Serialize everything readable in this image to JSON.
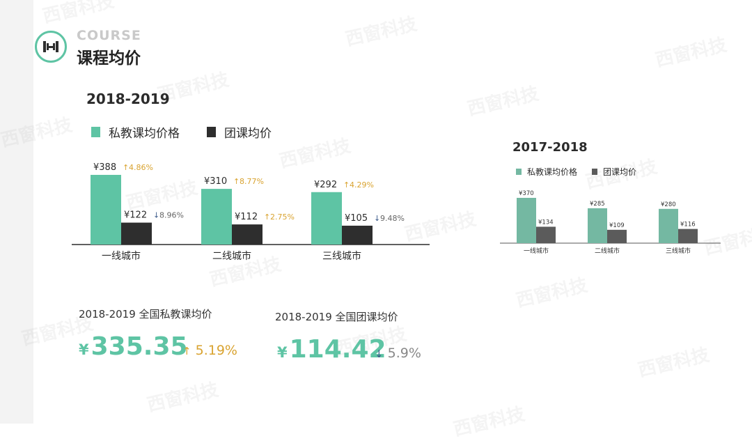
{
  "header": {
    "course_label": "COURSE",
    "title": "课程均价"
  },
  "watermark": "西窗科技",
  "colors": {
    "accent": "#5ec4a4",
    "dark_bar": "#2e2e2e",
    "light_accent": "#74b8a2",
    "light_dark_bar": "#5b5b5b",
    "up_arrow": "#d9a330",
    "down_arrow": "#3b5a8a"
  },
  "chart_data": [
    {
      "type": "bar",
      "title": "2018-2019",
      "categories": [
        "一线城市",
        "二线城市",
        "三线城市"
      ],
      "series": [
        {
          "name": "私教课均价格",
          "values": [
            388,
            310,
            292
          ],
          "labels": [
            "¥388",
            "¥310",
            "¥292"
          ],
          "changes": [
            {
              "direction": "up",
              "text": "4.86%"
            },
            {
              "direction": "up",
              "text": "8.77%"
            },
            {
              "direction": "up",
              "text": "4.29%"
            }
          ]
        },
        {
          "name": "团课均价",
          "values": [
            122,
            112,
            105
          ],
          "labels": [
            "¥122",
            "¥112",
            "¥105"
          ],
          "changes": [
            {
              "direction": "down",
              "text": "8.96%"
            },
            {
              "direction": "up",
              "text": "2.75%"
            },
            {
              "direction": "down",
              "text": "9.48%"
            }
          ]
        }
      ],
      "legend": "top-left",
      "grid": false
    },
    {
      "type": "bar",
      "title": "2017-2018",
      "categories": [
        "一线城市",
        "二线城市",
        "三线城市"
      ],
      "series": [
        {
          "name": "私教课均价格",
          "values": [
            370,
            285,
            280
          ],
          "labels": [
            "¥370",
            "¥285",
            "¥280"
          ]
        },
        {
          "name": "团课均价",
          "values": [
            134,
            109,
            116
          ],
          "labels": [
            "¥134",
            "¥109",
            "¥116"
          ]
        }
      ],
      "legend": "top-left",
      "grid": false
    }
  ],
  "stats": [
    {
      "label": "2018-2019 全国私教课均价",
      "currency": "¥",
      "value": "335.35",
      "direction": "up",
      "change": "5.19%"
    },
    {
      "label": "2018-2019 全国团课均价",
      "currency": "¥",
      "value": "114.42",
      "direction": "down",
      "change": "5.9%"
    }
  ]
}
